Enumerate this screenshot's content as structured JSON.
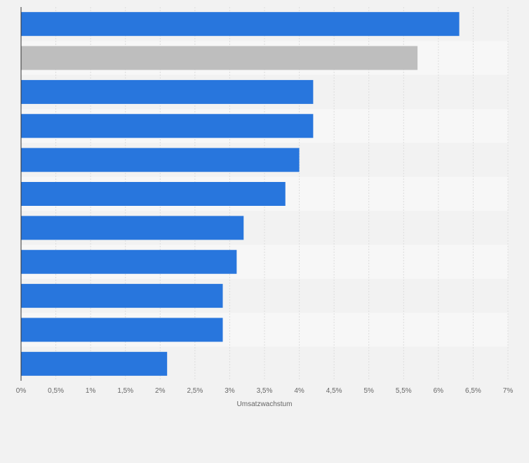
{
  "chart_data": {
    "type": "bar",
    "orientation": "horizontal",
    "title": "",
    "xlabel": "Umsatzwachstum",
    "ylabel": "",
    "categories": [
      "",
      "",
      "",
      "",
      "",
      "",
      "",
      "",
      "",
      "",
      ""
    ],
    "values": [
      6.3,
      5.7,
      4.2,
      4.2,
      4.0,
      3.8,
      3.2,
      3.1,
      2.9,
      2.9,
      2.1
    ],
    "highlight_index": 1,
    "xlim": [
      0,
      7
    ],
    "xticks": [
      0,
      0.5,
      1,
      1.5,
      2,
      2.5,
      3,
      3.5,
      4,
      4.5,
      5,
      5.5,
      6,
      6.5,
      7
    ],
    "xtick_labels": [
      "0%",
      "0,5%",
      "1%",
      "1,5%",
      "2%",
      "2,5%",
      "3%",
      "3,5%",
      "4%",
      "4,5%",
      "5%",
      "5,5%",
      "6%",
      "6,5%",
      "7%"
    ],
    "grid": true,
    "legend": "none"
  },
  "colors": {
    "bar": "#2876dd",
    "bar_highlight": "#bebebe",
    "background": "#f2f2f2",
    "band_dark": "#f2f2f2",
    "band_light": "#f7f7f7",
    "grid": "#dddddd",
    "axis": "#333333",
    "text": "#666666"
  }
}
